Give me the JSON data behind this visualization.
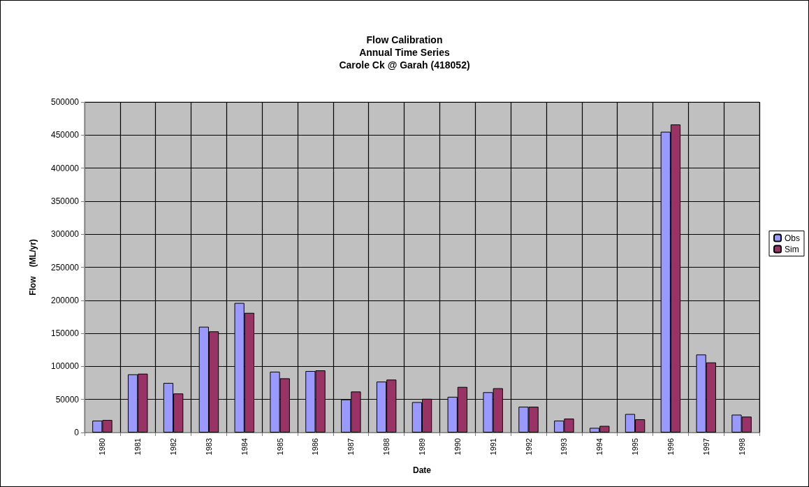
{
  "chart_data": {
    "type": "bar",
    "title": "Flow Calibration\nAnnual Time Series\nCarole Ck @ Garah (418052)",
    "xlabel": "Date",
    "ylabel": "Flow    (ML/yr)",
    "categories": [
      "1980",
      "1981",
      "1982",
      "1983",
      "1984",
      "1985",
      "1986",
      "1987",
      "1988",
      "1989",
      "1990",
      "1991",
      "1992",
      "1993",
      "1994",
      "1995",
      "1996",
      "1997",
      "1998"
    ],
    "series": [
      {
        "name": "Obs",
        "color": "#9999ff",
        "values": [
          18000,
          88000,
          75000,
          160000,
          196000,
          92000,
          93000,
          50000,
          77000,
          46000,
          54000,
          61000,
          39000,
          18000,
          7000,
          28000,
          455000,
          118000,
          27000
        ]
      },
      {
        "name": "Sim",
        "color": "#993366",
        "values": [
          19000,
          89000,
          59000,
          153000,
          181000,
          82000,
          94000,
          62000,
          80000,
          51000,
          69000,
          67000,
          39000,
          21000,
          10000,
          20000,
          466000,
          106000,
          24000
        ]
      }
    ],
    "ylim": [
      0,
      500000
    ],
    "yticks": [
      0,
      50000,
      100000,
      150000,
      200000,
      250000,
      300000,
      350000,
      400000,
      450000,
      500000
    ],
    "grid": true,
    "legend": "right"
  }
}
